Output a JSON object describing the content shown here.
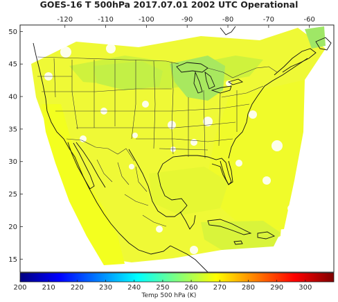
{
  "title": "GOES-16 T 500hPa 2017.07.01 2002 UTC Operational",
  "map": {
    "lon_range": [
      -131,
      -54
    ],
    "lat_range": [
      13,
      51
    ],
    "lon_ticks": [
      "-120",
      "-110",
      "-100",
      "-90",
      "-80",
      "-70",
      "-60"
    ],
    "lat_ticks": [
      "15",
      "20",
      "25",
      "30",
      "35",
      "40",
      "45",
      "50"
    ],
    "lon_tick_values": [
      -120,
      -110,
      -100,
      -90,
      -80,
      -70,
      -60
    ],
    "lat_tick_values": [
      15,
      20,
      25,
      30,
      35,
      40,
      45,
      50
    ],
    "field": "Temp 500 hPa (K)",
    "dominant_colors": {
      "yellow": "#f3ff1f",
      "yellow_green": "#d8f53a",
      "light_green": "#b4eb5a",
      "green": "#8fe36e"
    }
  },
  "colorbar": {
    "label": "Temp 500 hPa (K)",
    "ticks": [
      "200",
      "210",
      "220",
      "230",
      "240",
      "250",
      "260",
      "270",
      "280",
      "290",
      "300"
    ],
    "range": [
      200,
      310
    ],
    "colors": [
      "#00007f",
      "#0000ff",
      "#007fff",
      "#00ffff",
      "#7fff7f",
      "#ffff00",
      "#ff7f00",
      "#ff0000",
      "#7f0000"
    ]
  }
}
